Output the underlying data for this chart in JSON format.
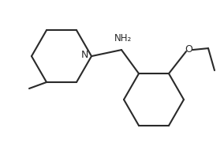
{
  "bg_color": "#ffffff",
  "line_color": "#2a2a2a",
  "line_width": 1.5,
  "font_size": 8.5,
  "NH2_label": "NH₂",
  "N_label": "N",
  "O_label": "O",
  "figw": 2.84,
  "figh": 1.86,
  "dpi": 100
}
